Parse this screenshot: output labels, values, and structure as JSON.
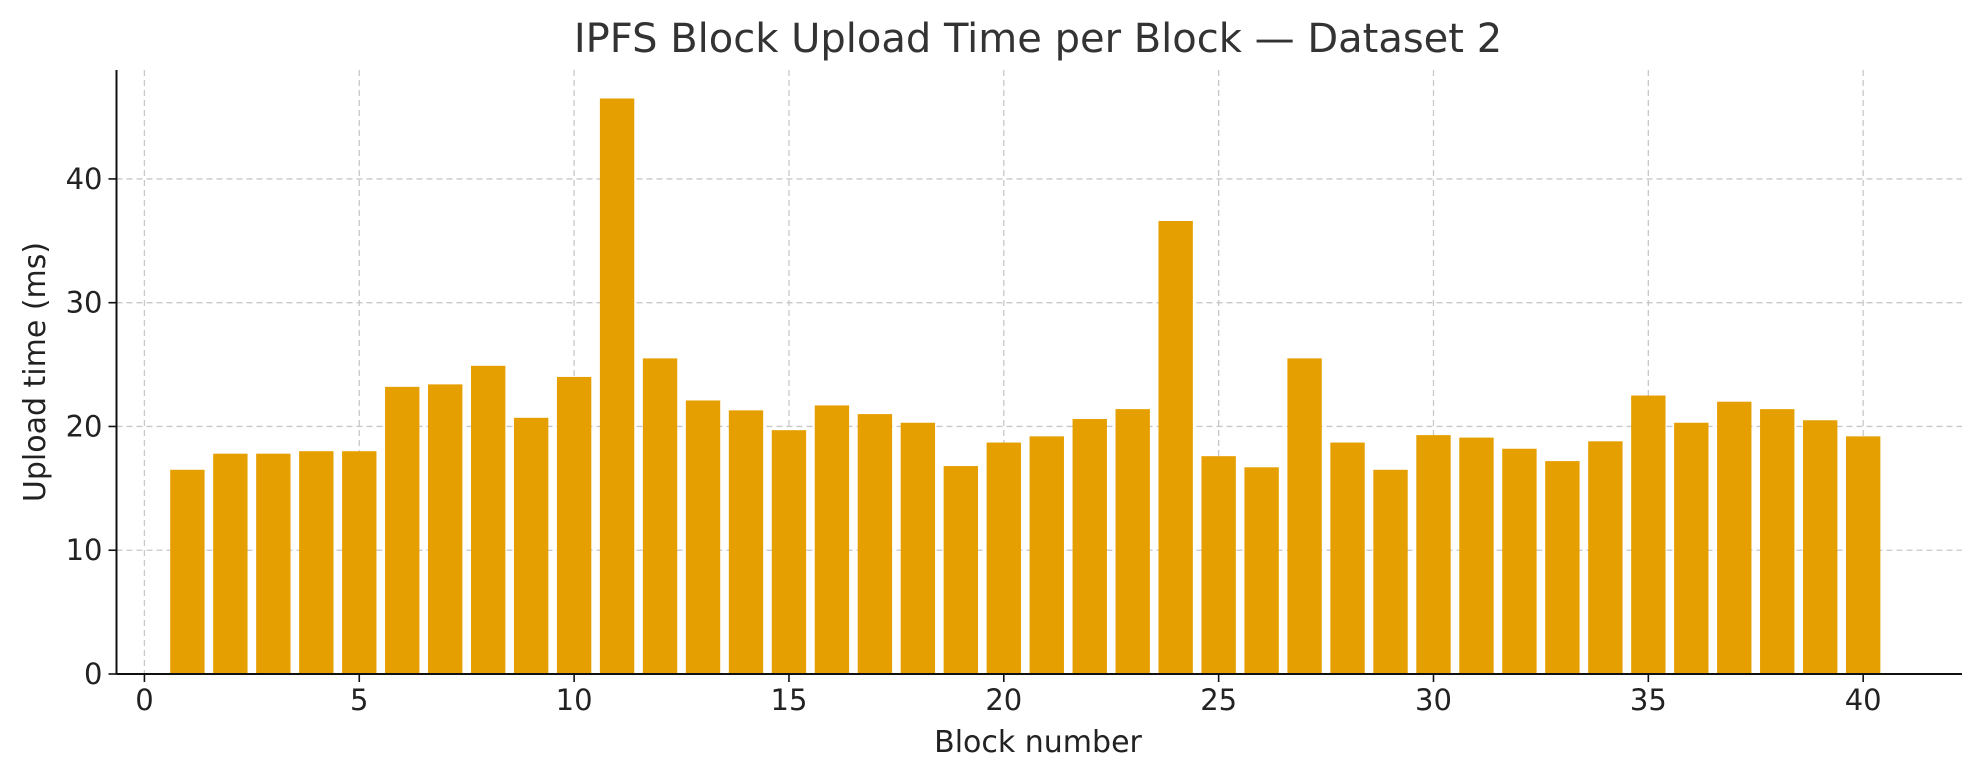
{
  "chart_data": {
    "type": "bar",
    "title": "IPFS Block Upload Time per Block — Dataset 2",
    "xlabel": "Block number",
    "ylabel": "Upload time (ms)",
    "xlim": [
      -0.65,
      42.3
    ],
    "ylim": [
      0,
      48.8
    ],
    "xticks": [
      0,
      5,
      10,
      15,
      20,
      25,
      30,
      35,
      40
    ],
    "yticks": [
      0,
      10,
      20,
      30,
      40
    ],
    "grid": true,
    "bar_color": "#E69F00",
    "x": [
      1,
      2,
      3,
      4,
      5,
      6,
      7,
      8,
      9,
      10,
      11,
      12,
      13,
      14,
      15,
      16,
      17,
      18,
      19,
      20,
      21,
      22,
      23,
      24,
      25,
      26,
      27,
      28,
      29,
      30,
      31,
      32,
      33,
      34,
      35,
      36,
      37,
      38,
      39,
      40
    ],
    "values": [
      16.5,
      17.8,
      17.8,
      18.0,
      18.0,
      23.2,
      23.4,
      24.9,
      20.7,
      24.0,
      46.5,
      25.5,
      22.1,
      21.3,
      19.7,
      21.7,
      21.0,
      20.3,
      16.8,
      18.7,
      19.2,
      20.6,
      21.4,
      36.6,
      17.6,
      16.7,
      25.5,
      18.7,
      16.5,
      19.3,
      19.1,
      18.2,
      17.2,
      18.8,
      22.5,
      20.3,
      22.0,
      21.4,
      20.5,
      19.2
    ]
  }
}
